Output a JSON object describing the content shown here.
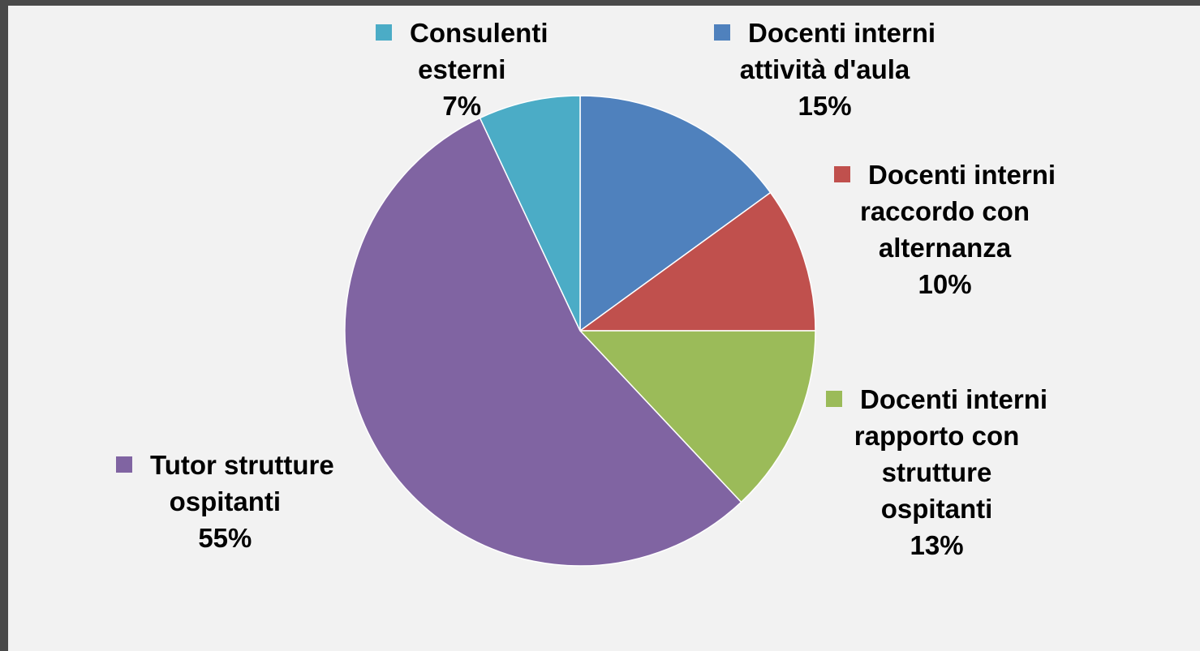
{
  "chart_data": {
    "type": "pie",
    "title": "",
    "series": [
      {
        "values": [
          15,
          10,
          13,
          55,
          7
        ]
      }
    ],
    "slices": [
      {
        "key": "docenti-aula",
        "lines": [
          "Docenti interni",
          "attività d'aula"
        ],
        "percent_label": "15%",
        "value": 15,
        "color": "#4f81bd"
      },
      {
        "key": "docenti-raccordo",
        "lines": [
          "Docenti interni",
          "raccordo con",
          "alternanza"
        ],
        "percent_label": "10%",
        "value": 10,
        "color": "#c0504d"
      },
      {
        "key": "docenti-rapporto",
        "lines": [
          "Docenti interni",
          "rapporto con",
          "strutture",
          "ospitanti"
        ],
        "percent_label": "13%",
        "value": 13,
        "color": "#9bbb59"
      },
      {
        "key": "tutor",
        "lines": [
          "Tutor strutture",
          "ospitanti"
        ],
        "percent_label": "55%",
        "value": 55,
        "color": "#8064a2"
      },
      {
        "key": "consulenti",
        "lines": [
          "Consulenti",
          "esterni"
        ],
        "percent_label": "7%",
        "value": 7,
        "color": "#4bacc6"
      }
    ],
    "legend": "data labels with color keys next to slices"
  }
}
